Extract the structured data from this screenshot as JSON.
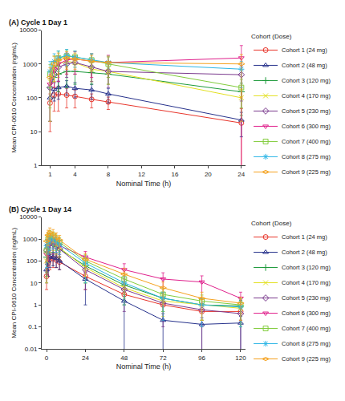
{
  "chart_data": [
    {
      "type": "line",
      "title": "(A) Cycle 1 Day 1",
      "x_label": "Nominal Time (h)",
      "y_label": "Mean CPI-0610 Concentration (ng/mL)",
      "legend_title": "Cohort (Dose)",
      "legend": "right",
      "log": "y",
      "x": [
        1,
        1.5,
        2,
        3,
        4,
        6,
        8,
        24
      ],
      "xlim": [
        0,
        24.5
      ],
      "xticks": [
        1,
        4,
        8,
        12,
        16,
        20,
        24
      ],
      "ylim": [
        1,
        10000
      ],
      "yticks": [
        1,
        10,
        100,
        1000,
        10000
      ],
      "series": [
        {
          "name": "Cohort 1 (24 mg)",
          "color": "#e8352b",
          "marker": "circle",
          "values": [
            70,
            120,
            130,
            120,
            110,
            90,
            75,
            18
          ],
          "error": [
            60,
            80,
            90,
            70,
            60,
            40,
            30,
            30
          ]
        },
        {
          "name": "Cohort 2 (48 mg)",
          "color": "#27328c",
          "marker": "triangle-up",
          "values": [
            100,
            180,
            200,
            220,
            190,
            170,
            130,
            22
          ],
          "error": [
            80,
            100,
            110,
            100,
            90,
            80,
            60,
            15
          ]
        },
        {
          "name": "Cohort 3 (120 mg)",
          "color": "#1c9a3a",
          "marker": "plus",
          "values": [
            200,
            400,
            500,
            600,
            600,
            550,
            500,
            150
          ],
          "error": [
            180,
            300,
            350,
            400,
            350,
            300,
            250,
            120
          ]
        },
        {
          "name": "Cohort 4 (170 mg)",
          "color": "#e3e021",
          "marker": "x",
          "values": [
            300,
            700,
            1000,
            1200,
            1100,
            700,
            600,
            100
          ],
          "error": [
            280,
            500,
            600,
            700,
            600,
            400,
            350,
            80
          ]
        },
        {
          "name": "Cohort 5 (230 mg)",
          "color": "#7b3b8e",
          "marker": "diamond",
          "values": [
            200,
            500,
            800,
            1000,
            1100,
            800,
            600,
            480
          ],
          "error": [
            180,
            400,
            500,
            600,
            600,
            500,
            400,
            400
          ]
        },
        {
          "name": "Cohort 6 (300 mg)",
          "color": "#e0208c",
          "marker": "triangle-down",
          "values": [
            250,
            700,
            1000,
            1300,
            1400,
            1200,
            1100,
            1500
          ],
          "error": [
            230,
            500,
            700,
            800,
            900,
            800,
            700,
            2000
          ]
        },
        {
          "name": "Cohort 7 (400 mg)",
          "color": "#82cc3c",
          "marker": "square",
          "values": [
            500,
            1000,
            1500,
            1700,
            1600,
            1300,
            1000,
            200
          ],
          "error": [
            450,
            700,
            900,
            900,
            800,
            700,
            600,
            150
          ]
        },
        {
          "name": "Cohort 8 (275 mg)",
          "color": "#2bb5e6",
          "marker": "asterisk",
          "values": [
            600,
            1200,
            1500,
            1800,
            1600,
            1300,
            1100,
            700
          ],
          "error": [
            580,
            800,
            900,
            900,
            800,
            700,
            600,
            500
          ]
        },
        {
          "name": "Cohort 9 (225 mg)",
          "color": "#f5a21f",
          "marker": "diamond-wide",
          "values": [
            400,
            1000,
            1300,
            1500,
            1400,
            1200,
            1100,
            1000
          ],
          "error": [
            380,
            700,
            800,
            800,
            700,
            600,
            600,
            900
          ]
        }
      ]
    },
    {
      "type": "line",
      "title": "(B) Cycle 1 Day 14",
      "x_label": "Nominal Time (h)",
      "y_label": "Mean CPI-0610 Concentration (ng/mL)",
      "legend_title": "Cohort (Dose)",
      "legend": "right",
      "log": "y",
      "x": [
        0,
        1,
        2,
        4,
        6,
        8,
        24,
        48,
        72,
        96,
        120
      ],
      "xlim": [
        -3,
        123
      ],
      "xticks": [
        0,
        24,
        48,
        72,
        96,
        120
      ],
      "ylim": [
        0.01,
        10000
      ],
      "yticks": [
        0.01,
        0.1,
        1,
        10,
        100,
        1000,
        10000
      ],
      "series": [
        {
          "name": "Cohort 1 (24 mg)",
          "color": "#e8352b",
          "marker": "circle",
          "values": [
            20,
            80,
            120,
            130,
            110,
            90,
            20,
            3,
            1,
            0.5,
            0.5
          ],
          "error": [
            15,
            60,
            80,
            80,
            60,
            50,
            15,
            2,
            0.8,
            0.4,
            0.4
          ]
        },
        {
          "name": "Cohort 2 (48 mg)",
          "color": "#27328c",
          "marker": "triangle-up",
          "values": [
            40,
            100,
            150,
            150,
            130,
            100,
            15,
            1.5,
            0.2,
            0.13,
            0.15
          ],
          "error": [
            30,
            80,
            100,
            90,
            80,
            60,
            14,
            1.5,
            0.2,
            0.13,
            0.15
          ]
        },
        {
          "name": "Cohort 3 (120 mg)",
          "color": "#1c9a3a",
          "marker": "plus",
          "values": [
            150,
            400,
            600,
            600,
            450,
            350,
            60,
            8,
            2,
            1,
            0.9
          ],
          "error": [
            120,
            300,
            400,
            350,
            300,
            250,
            50,
            7,
            1.5,
            0.8,
            0.7
          ]
        },
        {
          "name": "Cohort 4 (170 mg)",
          "color": "#e3e021",
          "marker": "x",
          "values": [
            100,
            400,
            700,
            700,
            500,
            400,
            50,
            6,
            1.5,
            1,
            0.7
          ],
          "error": [
            90,
            300,
            450,
            400,
            300,
            250,
            40,
            5,
            1.2,
            0.8,
            0.6
          ]
        },
        {
          "name": "Cohort 5 (230 mg)",
          "color": "#7b3b8e",
          "marker": "diamond",
          "values": [
            300,
            500,
            600,
            600,
            450,
            350,
            40,
            5,
            1.2,
            0.6,
            0.4
          ],
          "error": [
            280,
            400,
            450,
            400,
            300,
            250,
            35,
            4.5,
            1.1,
            0.6,
            0.4
          ]
        },
        {
          "name": "Cohort 6 (300 mg)",
          "color": "#e0208c",
          "marker": "triangle-down",
          "values": [
            200,
            500,
            800,
            800,
            600,
            500,
            150,
            40,
            15,
            11,
            2
          ],
          "error": [
            180,
            400,
            500,
            450,
            350,
            300,
            120,
            35,
            14,
            10,
            1.8
          ]
        },
        {
          "name": "Cohort 7 (400 mg)",
          "color": "#82cc3c",
          "marker": "square",
          "values": [
            300,
            1000,
            1500,
            1300,
            900,
            700,
            100,
            15,
            3,
            1.5,
            1
          ],
          "error": [
            280,
            700,
            900,
            800,
            600,
            450,
            90,
            13,
            2.5,
            1.3,
            0.9
          ]
        },
        {
          "name": "Cohort 8 (275 mg)",
          "color": "#2bb5e6",
          "marker": "asterisk",
          "values": [
            500,
            700,
            900,
            900,
            700,
            550,
            80,
            10,
            2,
            1,
            0.8
          ],
          "error": [
            450,
            500,
            600,
            550,
            450,
            350,
            70,
            9,
            1.8,
            0.9,
            0.7
          ]
        },
        {
          "name": "Cohort 9 (225 mg)",
          "color": "#f5a21f",
          "marker": "diamond-wide",
          "values": [
            800,
            1500,
            2000,
            1700,
            1200,
            900,
            120,
            25,
            6,
            2,
            1.2
          ],
          "error": [
            700,
            1000,
            1200,
            1000,
            700,
            550,
            100,
            22,
            5,
            1.8,
            1
          ]
        }
      ]
    }
  ]
}
